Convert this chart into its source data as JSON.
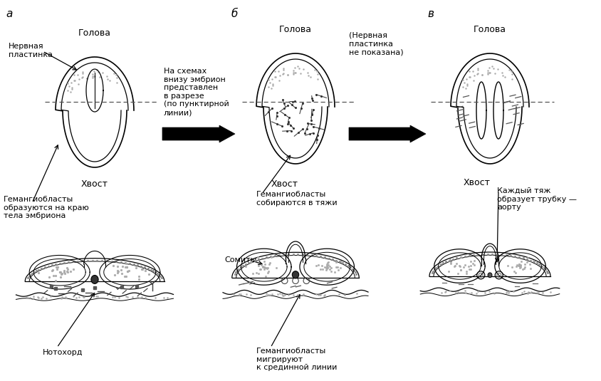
{
  "bg_color": "#ffffff",
  "line_color": "#000000",
  "text_color": "#000000",
  "figsize": [
    8.45,
    5.35
  ],
  "dpi": 100,
  "labels": {
    "a": "а",
    "b": "б",
    "c": "в",
    "head_a": "Голова",
    "head_b": "Голова",
    "head_c": "Голова",
    "tail_a": "Хвост",
    "tail_b": "Хвост",
    "tail_c": "Хвост",
    "nerve_a": "Нервная\nпластинка",
    "nerve_b": "(Нервная\nпластинка\nне показана)",
    "haemang_a": "Гемангиобласты\nобразуются на краю\nтела эмбриона",
    "haemang_b": "Гемангиобласты\nсобираются в тяжи",
    "haemang_c": "Каждый тяж\nобразует трубку —\nаорту",
    "haemang_migr": "Гемангиобласты\nмигрируют\nк срединной линии",
    "notochord": "Нотохорд",
    "somites": "Сомиты",
    "scheme_note": "На схемах\nвнизу эмбрион\nпредставлен\nв разрезе\n(по пунктирной\nлинии)"
  }
}
